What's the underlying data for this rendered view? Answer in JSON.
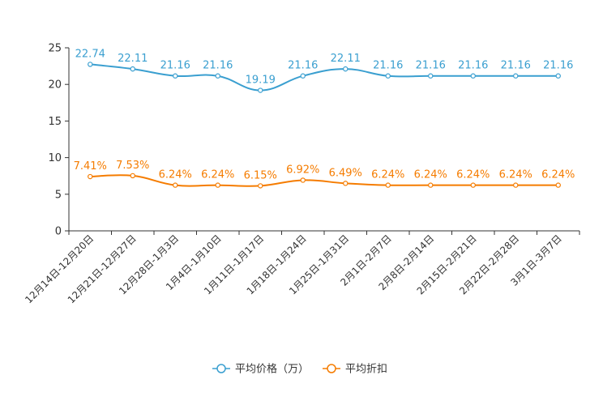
{
  "chart_data": {
    "type": "line",
    "title": "",
    "categories": [
      "12月14日-12月20日",
      "12月21日-12月27日",
      "12月28日-1月3日",
      "1月4日-1月10日",
      "1月11日-1月17日",
      "1月18日-1月24日",
      "1月25日-1月31日",
      "2月1日-2月7日",
      "2月8日-2月14日",
      "2月15日-2月21日",
      "2月22日-2月28日",
      "3月1日-3月7日"
    ],
    "ylim": [
      0,
      25
    ],
    "yticks": [
      "0",
      "5",
      "10",
      "15",
      "20",
      "25"
    ],
    "series": [
      {
        "name": "平均价格（万）",
        "color": "#3a9fd0",
        "values": [
          22.74,
          22.11,
          21.16,
          21.16,
          19.19,
          21.16,
          22.11,
          21.16,
          21.16,
          21.16,
          21.16,
          21.16
        ],
        "labels": [
          "22.74",
          "22.11",
          "21.16",
          "21.16",
          "19.19",
          "21.16",
          "22.11",
          "21.16",
          "21.16",
          "21.16",
          "21.16",
          "21.16"
        ]
      },
      {
        "name": "平均折扣",
        "color": "#f57c00",
        "values": [
          7.41,
          7.53,
          6.24,
          6.24,
          6.15,
          6.92,
          6.49,
          6.24,
          6.24,
          6.24,
          6.24,
          6.24
        ],
        "labels": [
          "7.41%",
          "7.53%",
          "6.24%",
          "6.24%",
          "6.15%",
          "6.92%",
          "6.49%",
          "6.24%",
          "6.24%",
          "6.24%",
          "6.24%",
          "6.24%"
        ]
      }
    ],
    "legend_position": "bottom-center"
  }
}
